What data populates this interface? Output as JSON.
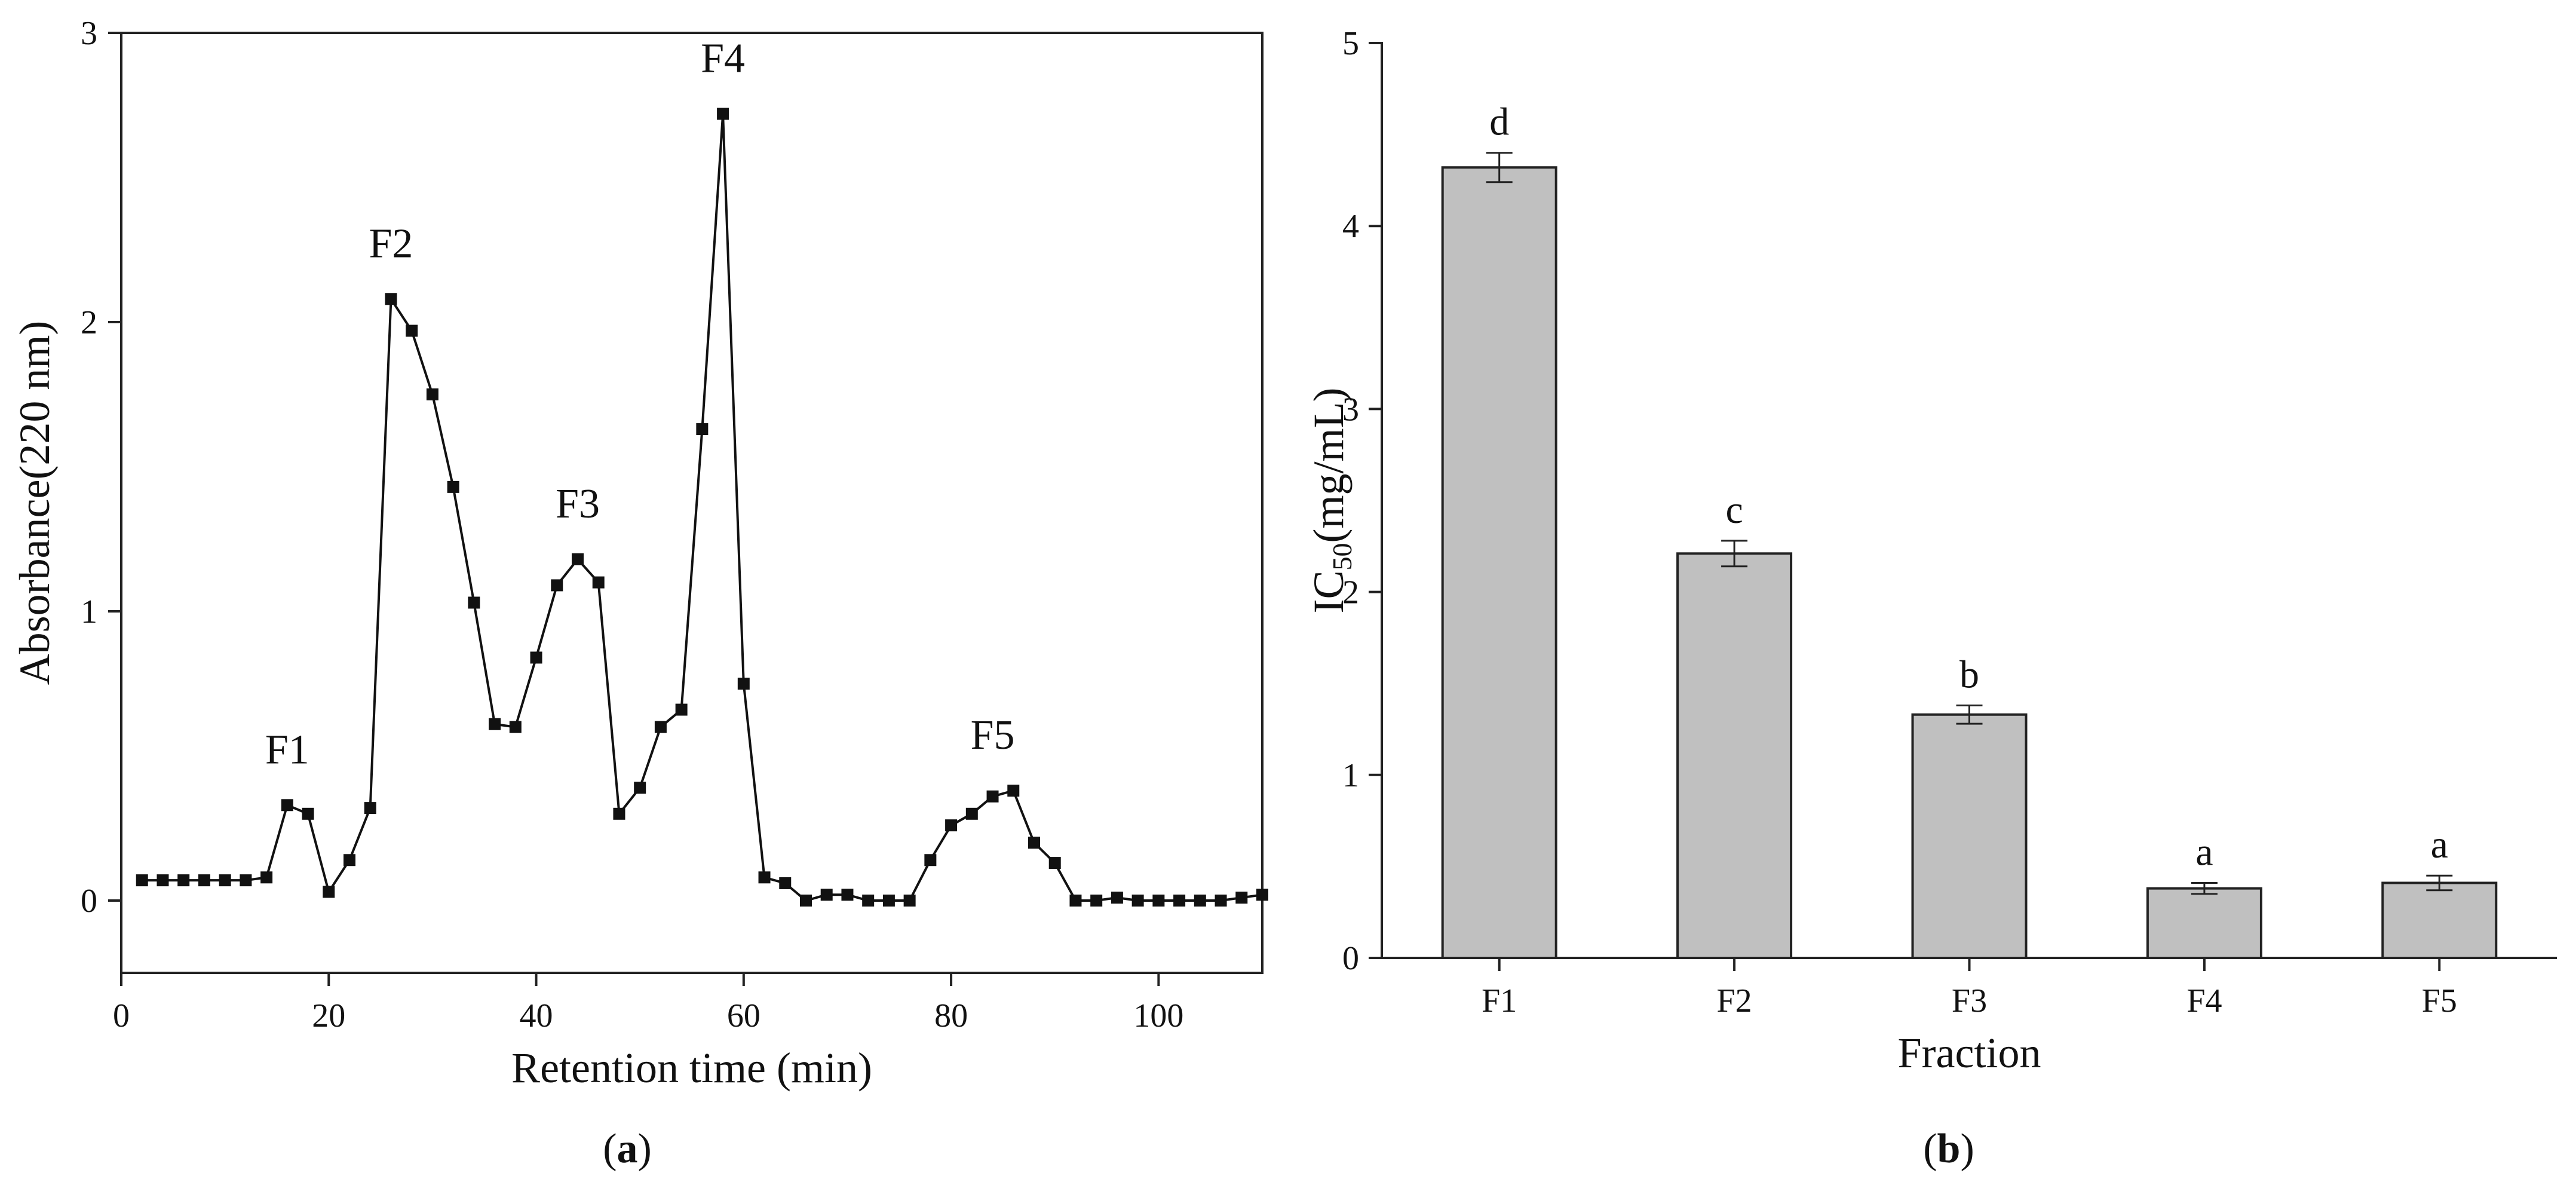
{
  "chart_data": [
    {
      "type": "line",
      "panel_label": "a",
      "xlabel": "Retention time (min)",
      "ylabel": "Absorbance(220 nm)",
      "xlim": [
        0,
        110
      ],
      "ylim": [
        -0.25,
        3
      ],
      "xticks": [
        0,
        20,
        40,
        60,
        80,
        100
      ],
      "yticks": [
        0,
        1,
        2,
        3
      ],
      "series": [
        {
          "name": "Absorbance",
          "x": [
            2,
            4,
            6,
            8,
            10,
            12,
            14,
            16,
            18,
            20,
            22,
            24,
            26,
            28,
            30,
            32,
            34,
            36,
            38,
            40,
            42,
            44,
            46,
            48,
            50,
            52,
            54,
            56,
            58,
            60,
            62,
            64,
            66,
            68,
            70,
            72,
            74,
            76,
            78,
            80,
            82,
            84,
            86,
            88,
            90,
            92,
            94,
            96,
            98,
            100,
            102,
            104,
            106,
            108,
            110
          ],
          "y": [
            0.07,
            0.07,
            0.07,
            0.07,
            0.07,
            0.07,
            0.08,
            0.33,
            0.3,
            0.03,
            0.14,
            0.32,
            2.08,
            1.97,
            1.75,
            1.43,
            1.03,
            0.61,
            0.6,
            0.84,
            1.09,
            1.18,
            1.1,
            0.3,
            0.39,
            0.6,
            0.66,
            1.63,
            2.72,
            0.75,
            0.08,
            0.06,
            0.0,
            0.02,
            0.02,
            0.0,
            0.0,
            0.0,
            0.14,
            0.26,
            0.3,
            0.36,
            0.38,
            0.2,
            0.13,
            0.0,
            0.0,
            0.01,
            0.0,
            0.0,
            0.0,
            0.0,
            0.0,
            0.01,
            0.02
          ]
        }
      ],
      "annotations": [
        {
          "text": "F1",
          "x": 16,
          "y": 0.33
        },
        {
          "text": "F2",
          "x": 26,
          "y": 2.08
        },
        {
          "text": "F3",
          "x": 44,
          "y": 1.18
        },
        {
          "text": "F4",
          "x": 58,
          "y": 2.72
        },
        {
          "text": "F5",
          "x": 84,
          "y": 0.38
        }
      ]
    },
    {
      "type": "bar",
      "panel_label": "b",
      "xlabel": "Fraction",
      "ylabel": "IC",
      "ylabel_sub": "50",
      "ylabel_suffix": "(mg/mL)",
      "ylim": [
        0,
        5
      ],
      "yticks": [
        0,
        1,
        2,
        3,
        4,
        5
      ],
      "categories": [
        "F1",
        "F2",
        "F3",
        "F4",
        "F5"
      ],
      "values": [
        4.32,
        2.21,
        1.33,
        0.38,
        0.41
      ],
      "errors": [
        0.08,
        0.07,
        0.05,
        0.03,
        0.04
      ],
      "significance": [
        "d",
        "c",
        "b",
        "a",
        "a"
      ],
      "bar_color": "#c0c0c0"
    }
  ]
}
